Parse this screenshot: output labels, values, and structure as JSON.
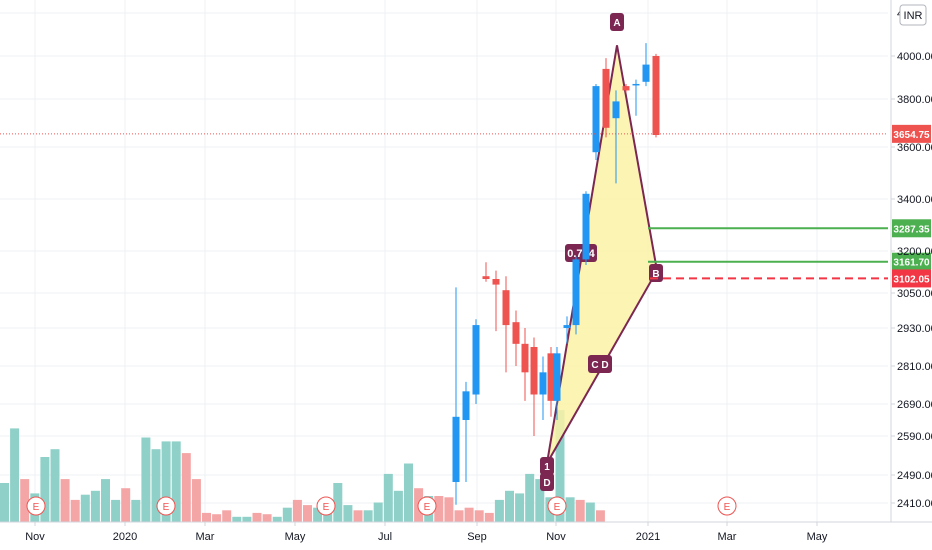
{
  "currency_badge": "INR",
  "colors": {
    "up": "#2196f3",
    "down": "#ef5350",
    "up_vol": "#8fd0c8",
    "down_vol": "#f4a6a6",
    "pattern_fill": "#fbf2a5",
    "pattern_line": "#7b2752",
    "grid": "#eef0f3",
    "target_green": "#4caf50",
    "stop_red": "#f23645"
  },
  "chart_data": {
    "type": "candlestick",
    "timeframe": "monthly",
    "y_axis": {
      "min": 2380,
      "max": 4080,
      "ticks": [
        2410,
        2490,
        2590,
        2690,
        2810,
        2930,
        3050,
        3200,
        3400,
        3600,
        3800,
        4000
      ],
      "tick_labels": [
        "2410.00",
        "2490.00",
        "2590.00",
        "2690.00",
        "2810.00",
        "2930.00",
        "3050.00",
        "3200.00",
        "3400.00",
        "3600.00",
        "3800.00",
        "4000.00"
      ],
      "top_partial_label": "4"
    },
    "x_axis_labels": [
      "Nov",
      "2020",
      "Mar",
      "May",
      "Jul",
      "Sep",
      "Nov",
      "2021",
      "Mar",
      "May"
    ],
    "candles": [
      {
        "o": 2470,
        "h": 3070,
        "l": 2405,
        "c": 2650
      },
      {
        "o": 2640,
        "h": 2760,
        "l": 2470,
        "c": 2730
      },
      {
        "o": 2720,
        "h": 2960,
        "l": 2690,
        "c": 2940
      },
      {
        "o": 3110,
        "h": 3160,
        "l": 3090,
        "c": 3100
      },
      {
        "o": 3100,
        "h": 3130,
        "l": 2920,
        "c": 3080
      },
      {
        "o": 3060,
        "h": 3110,
        "l": 2790,
        "c": 2940
      },
      {
        "o": 2950,
        "h": 2990,
        "l": 2810,
        "c": 2880
      },
      {
        "o": 2880,
        "h": 2930,
        "l": 2700,
        "c": 2790
      },
      {
        "o": 2870,
        "h": 2900,
        "l": 2590,
        "c": 2720
      },
      {
        "o": 2720,
        "h": 2840,
        "l": 2640,
        "c": 2790
      },
      {
        "o": 2850,
        "h": 2870,
        "l": 2650,
        "c": 2700
      },
      {
        "o": 2700,
        "h": 2870,
        "l": 2640,
        "c": 2850
      },
      {
        "o": 2930,
        "h": 2970,
        "l": 2880,
        "c": 2940
      },
      {
        "o": 2940,
        "h": 3180,
        "l": 2910,
        "c": 3170
      },
      {
        "o": 3170,
        "h": 3430,
        "l": 3150,
        "c": 3420
      },
      {
        "o": 3580,
        "h": 3870,
        "l": 3550,
        "c": 3860
      },
      {
        "o": 3940,
        "h": 3990,
        "l": 3640,
        "c": 3680
      },
      {
        "o": 3720,
        "h": 3840,
        "l": 3460,
        "c": 3790
      },
      {
        "o": 3860,
        "h": 3870,
        "l": 3830,
        "c": 3840
      },
      {
        "o": 3870,
        "h": 3890,
        "l": 3730,
        "c": 3870
      },
      {
        "o": 3880,
        "h": 4060,
        "l": 3860,
        "c": 3960
      },
      {
        "o": 4000,
        "h": 4010,
        "l": 3640,
        "c": 3650
      }
    ],
    "volume": [
      {
        "v": 0.3,
        "up": true
      },
      {
        "v": 0.72,
        "up": true
      },
      {
        "v": 0.33,
        "up": false
      },
      {
        "v": 0.22,
        "up": true
      },
      {
        "v": 0.5,
        "up": true
      },
      {
        "v": 0.56,
        "up": true
      },
      {
        "v": 0.33,
        "up": false
      },
      {
        "v": 0.17,
        "up": false
      },
      {
        "v": 0.21,
        "up": true
      },
      {
        "v": 0.24,
        "up": true
      },
      {
        "v": 0.33,
        "up": true
      },
      {
        "v": 0.17,
        "up": true
      },
      {
        "v": 0.26,
        "up": false
      },
      {
        "v": 0.17,
        "up": true
      },
      {
        "v": 0.65,
        "up": true
      },
      {
        "v": 0.56,
        "up": true
      },
      {
        "v": 0.62,
        "up": true
      },
      {
        "v": 0.62,
        "up": true
      },
      {
        "v": 0.53,
        "up": false
      },
      {
        "v": 0.33,
        "up": false
      },
      {
        "v": 0.07,
        "up": false
      },
      {
        "v": 0.06,
        "up": false
      },
      {
        "v": 0.09,
        "up": false
      },
      {
        "v": 0.04,
        "up": true
      },
      {
        "v": 0.04,
        "up": true
      },
      {
        "v": 0.07,
        "up": false
      },
      {
        "v": 0.06,
        "up": false
      },
      {
        "v": 0.04,
        "up": true
      },
      {
        "v": 0.11,
        "up": true
      },
      {
        "v": 0.17,
        "up": false
      },
      {
        "v": 0.13,
        "up": false
      },
      {
        "v": 0.11,
        "up": true
      },
      {
        "v": 0.09,
        "up": true
      },
      {
        "v": 0.3,
        "up": true
      },
      {
        "v": 0.13,
        "up": true
      },
      {
        "v": 0.09,
        "up": false
      },
      {
        "v": 0.09,
        "up": true
      },
      {
        "v": 0.15,
        "up": true
      },
      {
        "v": 0.37,
        "up": true
      },
      {
        "v": 0.24,
        "up": true
      },
      {
        "v": 0.45,
        "up": true
      },
      {
        "v": 0.26,
        "up": false
      },
      {
        "v": 0.2,
        "up": true
      },
      {
        "v": 0.2,
        "up": false
      },
      {
        "v": 0.19,
        "up": false
      },
      {
        "v": 0.09,
        "up": false
      },
      {
        "v": 0.11,
        "up": false
      },
      {
        "v": 0.09,
        "up": false
      },
      {
        "v": 0.07,
        "up": false
      },
      {
        "v": 0.17,
        "up": true
      },
      {
        "v": 0.24,
        "up": true
      },
      {
        "v": 0.22,
        "up": true
      },
      {
        "v": 0.37,
        "up": true
      },
      {
        "v": 0.33,
        "up": true
      },
      {
        "v": 0.19,
        "up": true
      },
      {
        "v": 0.86,
        "up": true
      },
      {
        "v": 0.19,
        "up": true
      },
      {
        "v": 0.17,
        "up": false
      },
      {
        "v": 0.15,
        "up": true
      },
      {
        "v": 0.09,
        "up": false
      }
    ],
    "earnings_markers": [
      "E",
      "E",
      "E",
      "E",
      "E",
      "E",
      "E"
    ],
    "pattern": {
      "name": "XABCD",
      "points": [
        {
          "label": "D",
          "price": 2520
        },
        {
          "label": "A",
          "price": 4050
        },
        {
          "label": "B",
          "price": 3130
        },
        {
          "label": "C",
          "price": 2810
        }
      ],
      "point_tags": [
        "1",
        "D",
        "A",
        "B",
        "C",
        "D"
      ],
      "ratio_label": "0.724",
      "c_tag": "C",
      "b_tag": "B"
    },
    "levels": [
      {
        "price": 3654.75,
        "label": "3654.75",
        "kind": "last"
      },
      {
        "price": 3287.35,
        "label": "3287.35",
        "kind": "target1"
      },
      {
        "price": 3161.7,
        "label": "3161.70",
        "kind": "target2"
      },
      {
        "price": 3102.05,
        "label": "3102.05",
        "kind": "stop"
      }
    ]
  }
}
